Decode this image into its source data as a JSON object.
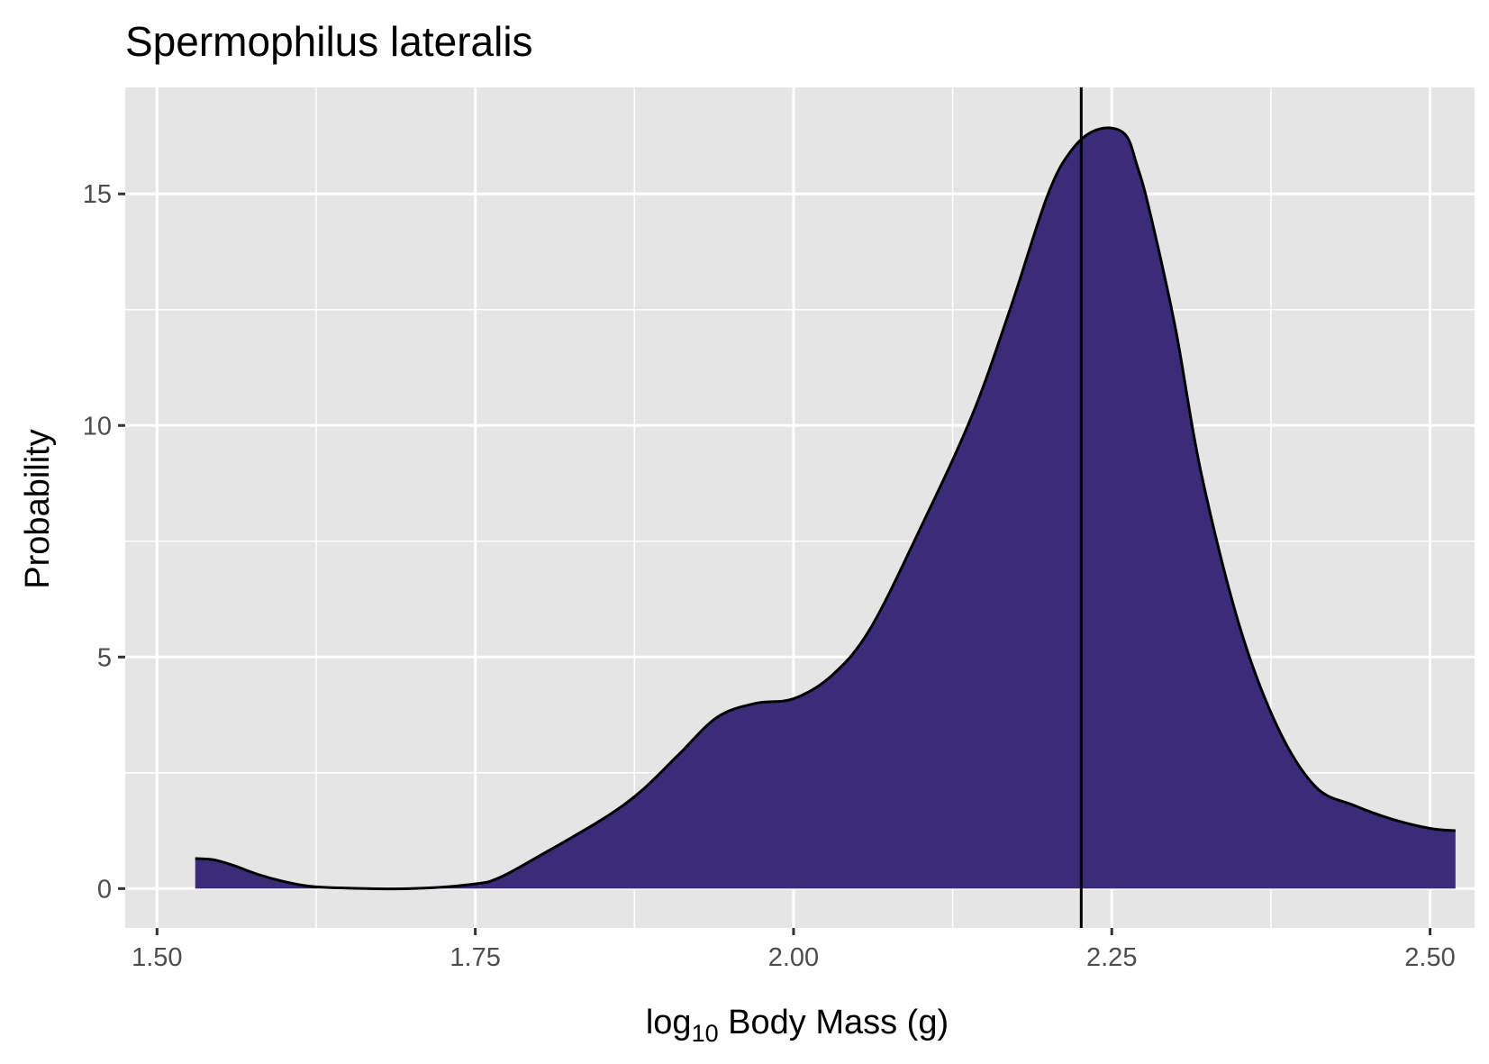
{
  "chart_data": {
    "type": "area",
    "title": "Spermophilus lateralis",
    "xlabel": {
      "prefix": "log",
      "subscript": "10",
      "suffix": " Body Mass (g)"
    },
    "ylabel": "Probability",
    "xlim": [
      1.475,
      2.535
    ],
    "ylim": [
      -0.85,
      17.3
    ],
    "x_ticks": [
      {
        "value": 1.5,
        "label": "1.50"
      },
      {
        "value": 1.75,
        "label": "1.75"
      },
      {
        "value": 2.0,
        "label": "2.00"
      },
      {
        "value": 2.25,
        "label": "2.25"
      },
      {
        "value": 2.5,
        "label": "2.50"
      }
    ],
    "y_ticks": [
      {
        "value": 0,
        "label": "0"
      },
      {
        "value": 5,
        "label": "5"
      },
      {
        "value": 10,
        "label": "10"
      },
      {
        "value": 15,
        "label": "15"
      }
    ],
    "x_minor_breaks": [
      1.625,
      1.875,
      2.125,
      2.375
    ],
    "y_minor_breaks": [
      2.5,
      7.5,
      12.5
    ],
    "grid": true,
    "vline": 2.226,
    "series": [
      {
        "fill": "#3a2c78",
        "stroke": "#000000",
        "x": [
          1.53,
          1.545,
          1.56,
          1.58,
          1.6,
          1.62,
          1.65,
          1.7,
          1.75,
          1.77,
          1.8,
          1.85,
          1.88,
          1.91,
          1.94,
          1.97,
          2.0,
          2.03,
          2.06,
          2.1,
          2.14,
          2.17,
          2.2,
          2.22,
          2.24,
          2.26,
          2.27,
          2.28,
          2.3,
          2.32,
          2.35,
          2.38,
          2.41,
          2.44,
          2.47,
          2.5,
          2.52
        ],
        "y": [
          0.65,
          0.62,
          0.5,
          0.3,
          0.15,
          0.05,
          0.01,
          0.0,
          0.1,
          0.25,
          0.7,
          1.5,
          2.1,
          2.9,
          3.7,
          4.0,
          4.1,
          4.6,
          5.6,
          7.8,
          10.2,
          12.5,
          15.0,
          16.0,
          16.4,
          16.3,
          15.6,
          14.6,
          12.1,
          9.0,
          5.7,
          3.5,
          2.2,
          1.8,
          1.5,
          1.3,
          1.25
        ]
      }
    ]
  }
}
